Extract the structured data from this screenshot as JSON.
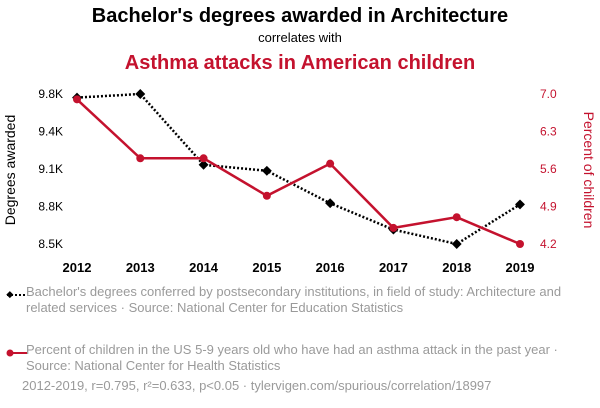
{
  "colors": {
    "series1": "#000000",
    "series2": "#c4122e",
    "muted": "#9a9a9a"
  },
  "header": {
    "title": "Bachelor's degrees awarded in Architecture",
    "subtitle": "correlates with",
    "title2": "Asthma attacks in American children"
  },
  "chart_data": {
    "type": "line",
    "x": [
      "2012",
      "2013",
      "2014",
      "2015",
      "2016",
      "2017",
      "2018",
      "2019"
    ],
    "ylabel_left": "Degrees awarded",
    "ylabel_right": "Percent of children",
    "left_ticks": [
      "8.5K",
      "8.8K",
      "9.1K",
      "9.4K",
      "9.8K"
    ],
    "right_ticks": [
      "4.2",
      "4.9",
      "5.6",
      "6.3",
      "7.0"
    ],
    "ylim_left": [
      8500,
      9750
    ],
    "ylim_right": [
      4.2,
      7.0
    ],
    "grid": false,
    "series": [
      {
        "name": "Bachelor's degrees conferred by postsecondary institutions, in field of study: Architecture and related services",
        "axis": "left",
        "style": "dotted",
        "marker": "diamond",
        "values": [
          9720,
          9750,
          9160,
          9110,
          8840,
          8620,
          8500,
          8830
        ]
      },
      {
        "name": "Percent of children in the US 5-9 years old who have had an asthma attack in the past year",
        "axis": "right",
        "style": "solid",
        "marker": "circle",
        "values": [
          6.9,
          5.8,
          5.8,
          5.1,
          5.7,
          4.5,
          4.7,
          4.2
        ]
      }
    ]
  },
  "legend": {
    "item1": "Bachelor's degrees conferred by postsecondary institutions, in field of study: Architecture and related services · Source: National Center for Education Statistics",
    "item2": "Percent of children in the US 5-9 years old who have had an asthma attack in the past year · Source: National Center for Health Statistics"
  },
  "footer": "2012-2019, r=0.795, r²=0.633, p<0.05 · tylervigen.com/spurious/correlation/18997"
}
